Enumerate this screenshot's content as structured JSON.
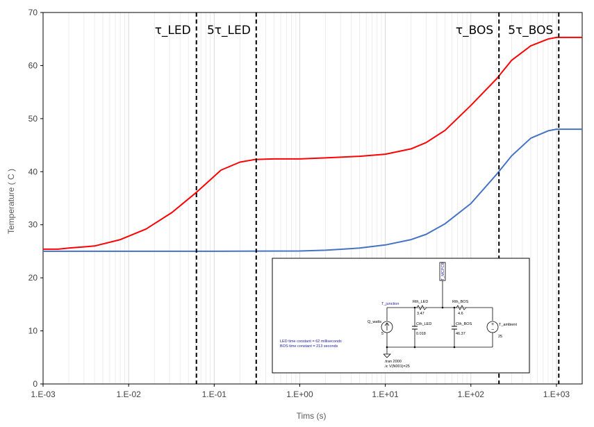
{
  "chart_data": {
    "type": "line",
    "xlabel": "Tims (s)",
    "ylabel": "Temperature ( C )",
    "xscale": "log",
    "xlim": [
      0.001,
      2000
    ],
    "ylim": [
      0,
      70
    ],
    "xtick_labels": [
      "1.E-03",
      "1.E-02",
      "1.E-01",
      "1.E+00",
      "1.E+01",
      "1.E+02",
      "1.E+03"
    ],
    "ytick_labels": [
      "0",
      "10",
      "20",
      "30",
      "40",
      "50",
      "60",
      "70"
    ],
    "grid": "vertical",
    "series": [
      {
        "color": "#ff0000",
        "x": [
          0.001,
          0.0015,
          0.002,
          0.004,
          0.008,
          0.016,
          0.032,
          0.063,
          0.12,
          0.2,
          0.3,
          0.5,
          1,
          2,
          5,
          10,
          20,
          30,
          50,
          100,
          200,
          300,
          500,
          800,
          1000,
          2000
        ],
        "y": [
          25.4,
          25.4,
          25.6,
          26,
          27.2,
          29.2,
          32.3,
          36.2,
          40.3,
          41.8,
          42.3,
          42.4,
          42.4,
          42.6,
          42.9,
          43.3,
          44.3,
          45.5,
          47.8,
          52.5,
          57.5,
          61,
          63.7,
          65,
          65.3,
          65.3
        ]
      },
      {
        "color": "#4472c4",
        "x": [
          0.001,
          0.01,
          0.1,
          1,
          2,
          5,
          10,
          20,
          30,
          50,
          100,
          200,
          300,
          500,
          800,
          1000,
          2000
        ],
        "y": [
          25,
          25,
          25,
          25.05,
          25.2,
          25.6,
          26.2,
          27.2,
          28.2,
          30.2,
          34,
          39.5,
          43,
          46.3,
          47.7,
          48,
          48
        ]
      }
    ],
    "vlines": [
      {
        "x": 0.062,
        "label": "τ_LED"
      },
      {
        "x": 0.31,
        "label": "5τ_LED"
      },
      {
        "x": 213,
        "label": "τ_BOS"
      },
      {
        "x": 1065,
        "label": "5τ_BOS"
      }
    ],
    "inset": {
      "node_labels": [
        "T_junction",
        "Rth_LED",
        "Rth_BOS",
        "T_MCPCB",
        "T_ambient"
      ],
      "components": [
        {
          "name": "Q_watts",
          "value": "5"
        },
        {
          "name": "Rth_LED",
          "value": "3.47"
        },
        {
          "name": "Rth_BOS",
          "value": "4.6"
        },
        {
          "name": "Cth_LED",
          "value": "0.018"
        },
        {
          "name": "Cth_BOS",
          "value": "46.37"
        },
        {
          "name": "T_ambient",
          "value": "25"
        }
      ],
      "notes": [
        "LED time constant = 62 milliseconds",
        "BOS time constant = 213 seconds"
      ],
      "directives": [
        ".tran 2000",
        ".ic V(N001)=25"
      ]
    }
  }
}
